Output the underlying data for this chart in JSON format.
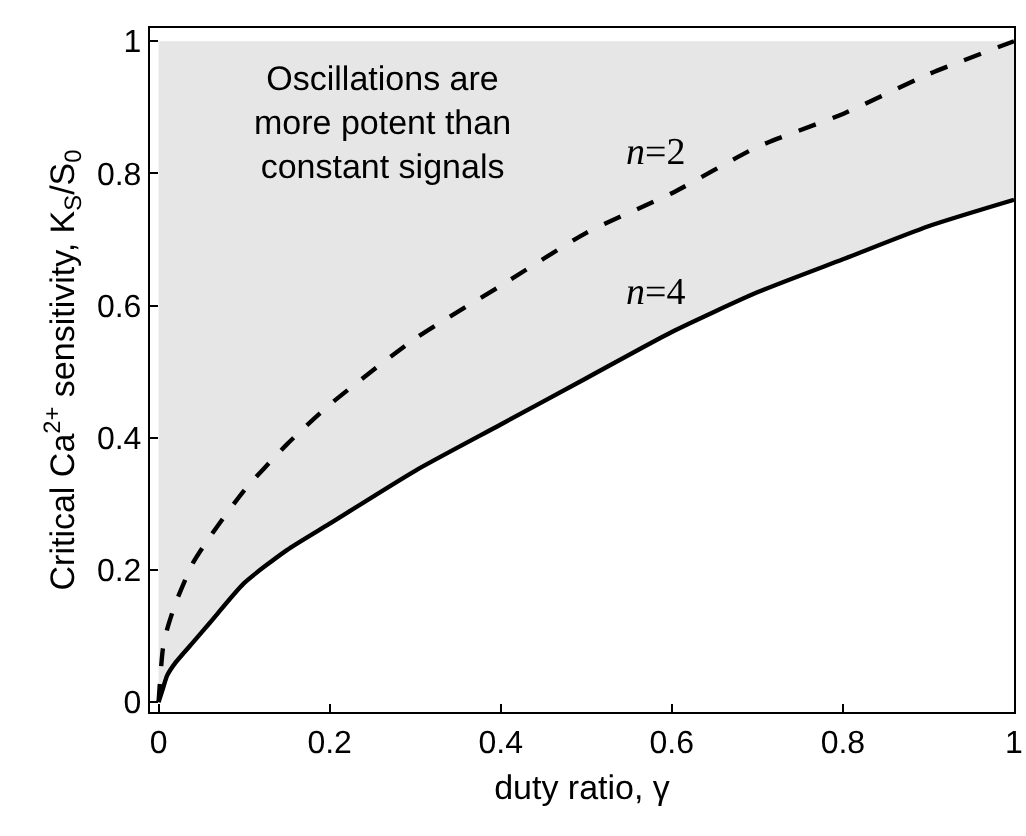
{
  "chart_data": {
    "type": "line",
    "xlabel": "duty ratio, γ",
    "ylabel": "Critical Ca$^{2+}$ sensitivity, K$_{S}$/S$_{0}$",
    "x": [
      0,
      0.005,
      0.01,
      0.02,
      0.04,
      0.06,
      0.1,
      0.15,
      0.2,
      0.3,
      0.4,
      0.5,
      0.6,
      0.7,
      0.8,
      0.9,
      1
    ],
    "series": [
      {
        "name": "n=2",
        "color": "#000000",
        "line_style": "dashed",
        "values": [
          0,
          0.08,
          0.11,
          0.15,
          0.21,
          0.25,
          0.32,
          0.39,
          0.45,
          0.55,
          0.63,
          0.71,
          0.77,
          0.84,
          0.89,
          0.95,
          1.0
        ]
      },
      {
        "name": "n=4",
        "color": "#000000",
        "line_style": "solid",
        "values": [
          0,
          0.02,
          0.04,
          0.06,
          0.09,
          0.12,
          0.18,
          0.23,
          0.27,
          0.35,
          0.42,
          0.49,
          0.56,
          0.62,
          0.67,
          0.72,
          0.76
        ],
        "lower": [
          0,
          0.02,
          0.04,
          0.06,
          0.09,
          0.12,
          0.18,
          0.23,
          0.27,
          0.35,
          0.42,
          0.49,
          0.56,
          0.62,
          0.67,
          0.72,
          0.76
        ],
        "upper": [
          1,
          1,
          1,
          1,
          1,
          1,
          1,
          1,
          1,
          1,
          1,
          1,
          1,
          1,
          1,
          1,
          1
        ]
      }
    ],
    "annotations": [
      "Oscillations are more potent than constant signals"
    ],
    "xlim": [
      -0.01,
      1
    ],
    "ylim": [
      -0.015,
      1.02
    ],
    "xticks": [
      0,
      0.2,
      0.4,
      0.6,
      0.8,
      1
    ],
    "yticks": [
      0,
      0.2,
      0.4,
      0.6,
      0.8,
      1
    ],
    "grid": false,
    "legend": false,
    "marker": "none"
  }
}
